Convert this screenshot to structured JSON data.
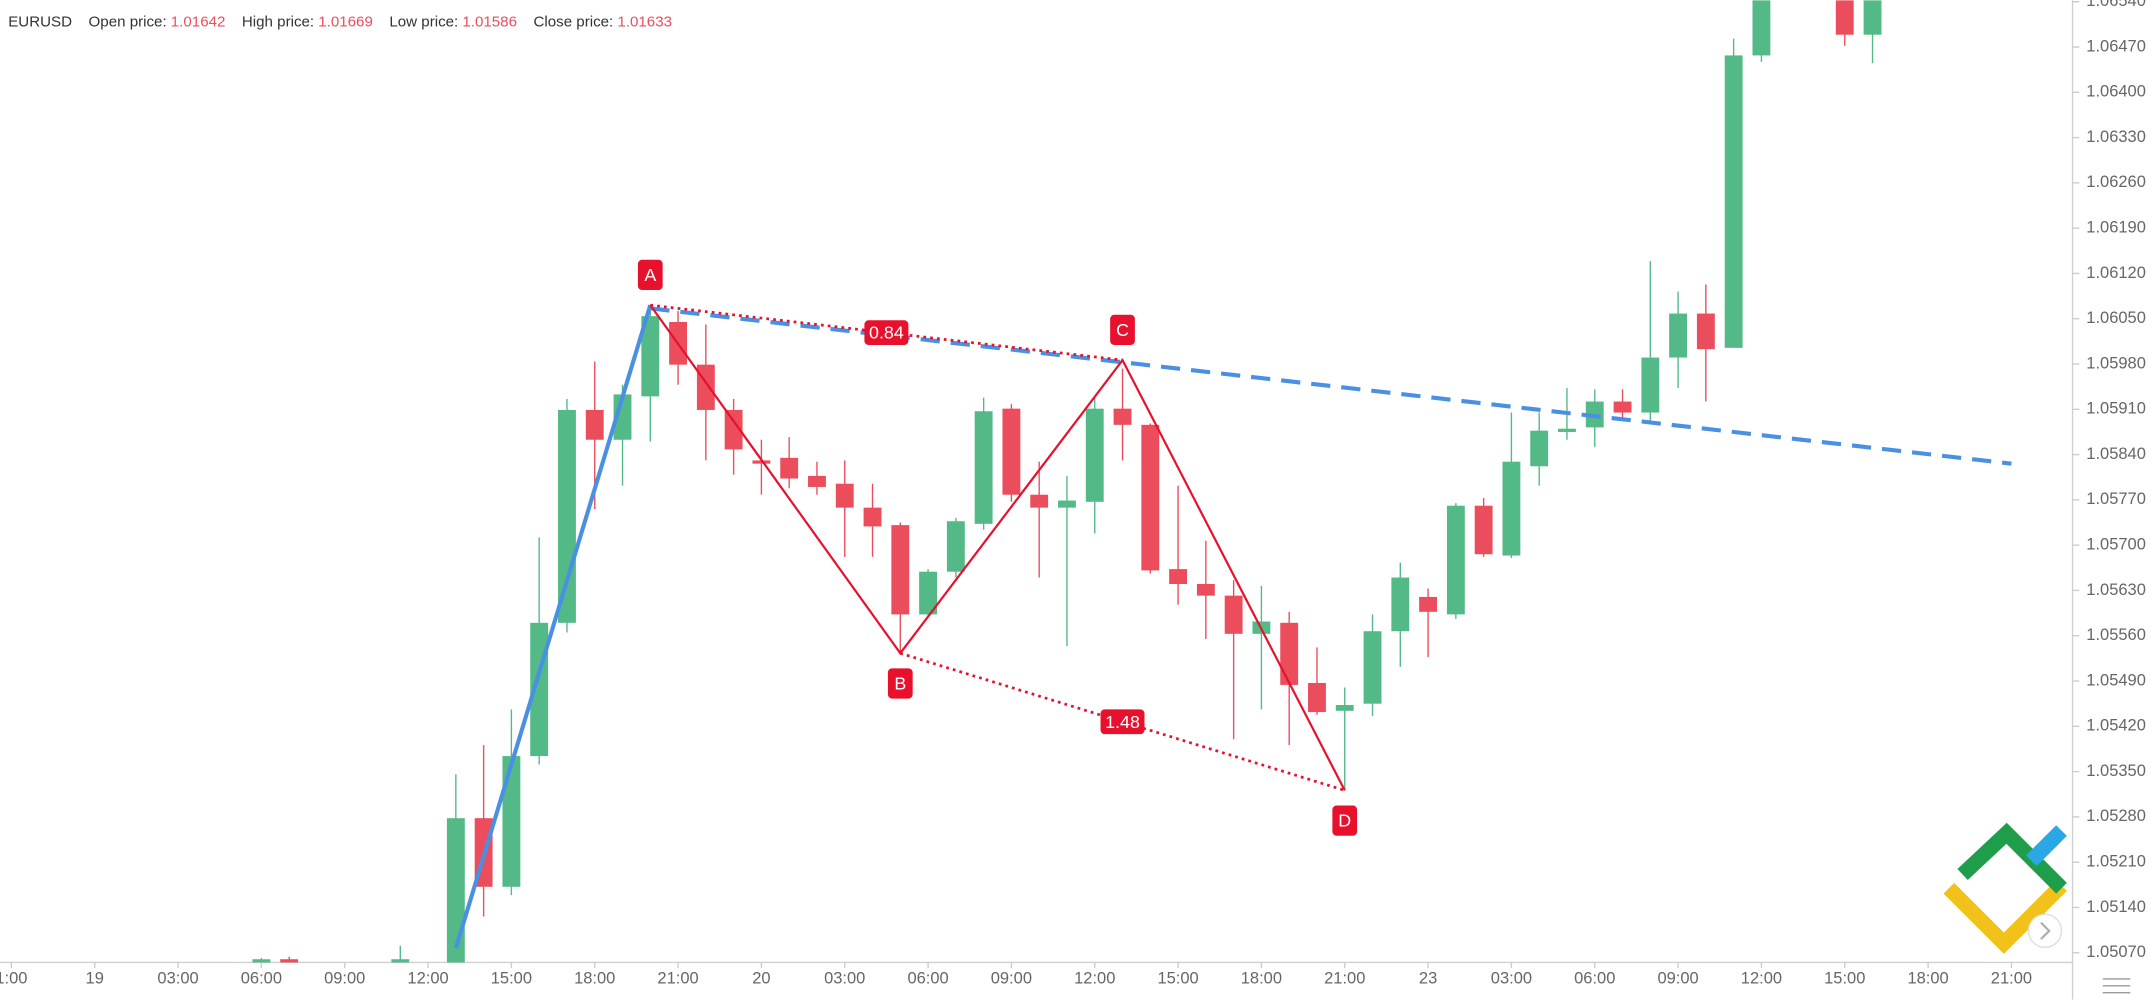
{
  "chart_data": {
    "type": "candlestick",
    "header": {
      "symbol": "EURUSD",
      "fields": [
        {
          "label": "Open price:",
          "value": 1.01642
        },
        {
          "label": "High price:",
          "value": 1.01669
        },
        {
          "label": "Low price:",
          "value": 1.01586
        },
        {
          "label": "Close price:",
          "value": 1.01633
        }
      ]
    },
    "up_color": "#53b987",
    "down_color": "#eb4d5c",
    "xlim": [
      -3.41,
      71.2
    ],
    "ylim": [
      1.05055,
      1.06542
    ],
    "xticks": [
      {
        "value": -3,
        "label": "1:00"
      },
      {
        "value": 0,
        "label": "19"
      },
      {
        "value": 3,
        "label": "03:00"
      },
      {
        "value": 6,
        "label": "06:00"
      },
      {
        "value": 9,
        "label": "09:00"
      },
      {
        "value": 12,
        "label": "12:00"
      },
      {
        "value": 15,
        "label": "15:00"
      },
      {
        "value": 18,
        "label": "18:00"
      },
      {
        "value": 21,
        "label": "21:00"
      },
      {
        "value": 24,
        "label": "20"
      },
      {
        "value": 27,
        "label": "03:00"
      },
      {
        "value": 30,
        "label": "06:00"
      },
      {
        "value": 33,
        "label": "09:00"
      },
      {
        "value": 36,
        "label": "12:00"
      },
      {
        "value": 39,
        "label": "15:00"
      },
      {
        "value": 42,
        "label": "18:00"
      },
      {
        "value": 45,
        "label": "21:00"
      },
      {
        "value": 48,
        "label": "23"
      },
      {
        "value": 51,
        "label": "03:00"
      },
      {
        "value": 54,
        "label": "06:00"
      },
      {
        "value": 57,
        "label": "09:00"
      },
      {
        "value": 60,
        "label": "12:00"
      },
      {
        "value": 63,
        "label": "15:00"
      },
      {
        "value": 66,
        "label": "18:00"
      },
      {
        "value": 69,
        "label": "21:00"
      }
    ],
    "yticks": [
      {
        "value": 1.0507,
        "label": "1.05070"
      },
      {
        "value": 1.0514,
        "label": "1.05140"
      },
      {
        "value": 1.0521,
        "label": "1.05210"
      },
      {
        "value": 1.0528,
        "label": "1.05280"
      },
      {
        "value": 1.0535,
        "label": "1.05350"
      },
      {
        "value": 1.0542,
        "label": "1.05420"
      },
      {
        "value": 1.0549,
        "label": "1.05490"
      },
      {
        "value": 1.0556,
        "label": "1.05560"
      },
      {
        "value": 1.0563,
        "label": "1.05630"
      },
      {
        "value": 1.057,
        "label": "1.05700"
      },
      {
        "value": 1.0577,
        "label": "1.05770"
      },
      {
        "value": 1.0584,
        "label": "1.05840"
      },
      {
        "value": 1.0591,
        "label": "1.05910"
      },
      {
        "value": 1.0598,
        "label": "1.05980"
      },
      {
        "value": 1.0605,
        "label": "1.06050"
      },
      {
        "value": 1.0612,
        "label": "1.06120"
      },
      {
        "value": 1.0619,
        "label": "1.06190"
      },
      {
        "value": 1.0626,
        "label": "1.06260"
      },
      {
        "value": 1.0633,
        "label": "1.06330"
      },
      {
        "value": 1.064,
        "label": "1.06400"
      },
      {
        "value": 1.0647,
        "label": "1.06470"
      },
      {
        "value": 1.0654,
        "label": "1.06540"
      }
    ],
    "candles": [
      {
        "x": 6,
        "open": 1.05055,
        "high": 1.05062,
        "low": 1.05055,
        "close": 1.0506
      },
      {
        "x": 7,
        "open": 1.0506,
        "high": 1.05064,
        "low": 1.05055,
        "close": 1.05055
      },
      {
        "x": 11,
        "open": 1.05055,
        "high": 1.05081,
        "low": 1.05055,
        "close": 1.0506
      },
      {
        "x": 13,
        "open": 1.05055,
        "high": 1.05346,
        "low": 1.05055,
        "close": 1.05278
      },
      {
        "x": 14,
        "open": 1.05278,
        "high": 1.05391,
        "low": 1.05126,
        "close": 1.05172
      },
      {
        "x": 15,
        "open": 1.05172,
        "high": 1.05446,
        "low": 1.05159,
        "close": 1.05374
      },
      {
        "x": 16,
        "open": 1.05374,
        "high": 1.05712,
        "low": 1.05361,
        "close": 1.0558
      },
      {
        "x": 17,
        "open": 1.0558,
        "high": 1.05926,
        "low": 1.05565,
        "close": 1.05909
      },
      {
        "x": 18,
        "open": 1.05909,
        "high": 1.05984,
        "low": 1.05756,
        "close": 1.05863
      },
      {
        "x": 19,
        "open": 1.05863,
        "high": 1.05948,
        "low": 1.05792,
        "close": 1.05933
      },
      {
        "x": 20,
        "open": 1.0593,
        "high": 1.06071,
        "low": 1.0586,
        "close": 1.06054
      },
      {
        "x": 21,
        "open": 1.06045,
        "high": 1.06062,
        "low": 1.05948,
        "close": 1.05979
      },
      {
        "x": 22,
        "open": 1.05979,
        "high": 1.06041,
        "low": 1.05831,
        "close": 1.05909
      },
      {
        "x": 23,
        "open": 1.05909,
        "high": 1.05926,
        "low": 1.05809,
        "close": 1.05848
      },
      {
        "x": 24,
        "open": 1.05831,
        "high": 1.05863,
        "low": 1.05778,
        "close": 1.05826
      },
      {
        "x": 25,
        "open": 1.05835,
        "high": 1.05867,
        "low": 1.05788,
        "close": 1.05803
      },
      {
        "x": 26,
        "open": 1.05807,
        "high": 1.05829,
        "low": 1.05778,
        "close": 1.0579
      },
      {
        "x": 27,
        "open": 1.05795,
        "high": 1.05831,
        "low": 1.05682,
        "close": 1.05758
      },
      {
        "x": 28,
        "open": 1.05758,
        "high": 1.05795,
        "low": 1.05682,
        "close": 1.05729
      },
      {
        "x": 29,
        "open": 1.05731,
        "high": 1.05735,
        "low": 1.05533,
        "close": 1.05593
      },
      {
        "x": 30,
        "open": 1.05593,
        "high": 1.05663,
        "low": 1.05591,
        "close": 1.05659
      },
      {
        "x": 31,
        "open": 1.05659,
        "high": 1.05742,
        "low": 1.0565,
        "close": 1.05737
      },
      {
        "x": 32,
        "open": 1.05733,
        "high": 1.05928,
        "low": 1.05724,
        "close": 1.05907
      },
      {
        "x": 33,
        "open": 1.05911,
        "high": 1.05918,
        "low": 1.05767,
        "close": 1.05778
      },
      {
        "x": 34,
        "open": 1.05778,
        "high": 1.05829,
        "low": 1.0565,
        "close": 1.05758
      },
      {
        "x": 35,
        "open": 1.05758,
        "high": 1.05807,
        "low": 1.05544,
        "close": 1.05769
      },
      {
        "x": 36,
        "open": 1.05767,
        "high": 1.0593,
        "low": 1.05718,
        "close": 1.05911
      },
      {
        "x": 37,
        "open": 1.05911,
        "high": 1.05973,
        "low": 1.05831,
        "close": 1.05886
      },
      {
        "x": 38,
        "open": 1.05886,
        "high": 1.05888,
        "low": 1.05656,
        "close": 1.05661
      },
      {
        "x": 39,
        "open": 1.05663,
        "high": 1.05792,
        "low": 1.05608,
        "close": 1.0564
      },
      {
        "x": 40,
        "open": 1.0564,
        "high": 1.05707,
        "low": 1.05555,
        "close": 1.05622
      },
      {
        "x": 41,
        "open": 1.05622,
        "high": 1.05646,
        "low": 1.054,
        "close": 1.05563
      },
      {
        "x": 42,
        "open": 1.05563,
        "high": 1.05637,
        "low": 1.05446,
        "close": 1.05582
      },
      {
        "x": 43,
        "open": 1.0558,
        "high": 1.05597,
        "low": 1.05391,
        "close": 1.05484
      },
      {
        "x": 44,
        "open": 1.05487,
        "high": 1.05542,
        "low": 1.05438,
        "close": 1.05442
      },
      {
        "x": 45,
        "open": 1.05444,
        "high": 1.0548,
        "low": 1.05321,
        "close": 1.05453
      },
      {
        "x": 46,
        "open": 1.05455,
        "high": 1.05593,
        "low": 1.05436,
        "close": 1.05567
      },
      {
        "x": 47,
        "open": 1.05567,
        "high": 1.05673,
        "low": 1.05512,
        "close": 1.0565
      },
      {
        "x": 48,
        "open": 1.0562,
        "high": 1.05633,
        "low": 1.05527,
        "close": 1.05597
      },
      {
        "x": 49,
        "open": 1.05593,
        "high": 1.05765,
        "low": 1.05586,
        "close": 1.05761
      },
      {
        "x": 50,
        "open": 1.05761,
        "high": 1.05773,
        "low": 1.05682,
        "close": 1.05686
      },
      {
        "x": 51,
        "open": 1.05684,
        "high": 1.05905,
        "low": 1.0568,
        "close": 1.05829
      },
      {
        "x": 52,
        "open": 1.05822,
        "high": 1.05905,
        "low": 1.05792,
        "close": 1.05877
      },
      {
        "x": 53,
        "open": 1.05875,
        "high": 1.05943,
        "low": 1.05863,
        "close": 1.0588
      },
      {
        "x": 54,
        "open": 1.05882,
        "high": 1.05941,
        "low": 1.05852,
        "close": 1.05922
      },
      {
        "x": 55,
        "open": 1.05922,
        "high": 1.05941,
        "low": 1.05894,
        "close": 1.05905
      },
      {
        "x": 56,
        "open": 1.05905,
        "high": 1.06139,
        "low": 1.05888,
        "close": 1.0599
      },
      {
        "x": 57,
        "open": 1.0599,
        "high": 1.06092,
        "low": 1.05943,
        "close": 1.06058
      },
      {
        "x": 58,
        "open": 1.06058,
        "high": 1.06103,
        "low": 1.05922,
        "close": 1.06003
      },
      {
        "x": 59,
        "open": 1.06005,
        "high": 1.06483,
        "low": 1.06005,
        "close": 1.06457
      },
      {
        "x": 60,
        "open": 1.06457,
        "high": 1.06563,
        "low": 1.06447,
        "close": 1.06553
      },
      {
        "x": 63,
        "open": 1.06553,
        "high": 1.06553,
        "low": 1.06472,
        "close": 1.06489
      },
      {
        "x": 64,
        "open": 1.06489,
        "high": 1.06553,
        "low": 1.06445,
        "close": 1.06553
      }
    ],
    "trendlines": [
      {
        "x": [
          13,
          20
        ],
        "y": [
          1.05077,
          1.06071
        ],
        "color": "#4a90e2",
        "style": "solid"
      },
      {
        "x": [
          20,
          69
        ],
        "y": [
          1.06066,
          1.05826
        ],
        "color": "#4a90e2",
        "style": "dashed"
      }
    ],
    "pattern": {
      "color": "#e8112d",
      "points": [
        {
          "label": "A",
          "x": 20,
          "y": 1.06071
        },
        {
          "label": "B",
          "x": 29,
          "y": 1.05533
        },
        {
          "label": "C",
          "x": 37,
          "y": 1.05986
        },
        {
          "label": "D",
          "x": 45,
          "y": 1.05321
        }
      ],
      "ratios": [
        0.84,
        1.48
      ]
    }
  }
}
